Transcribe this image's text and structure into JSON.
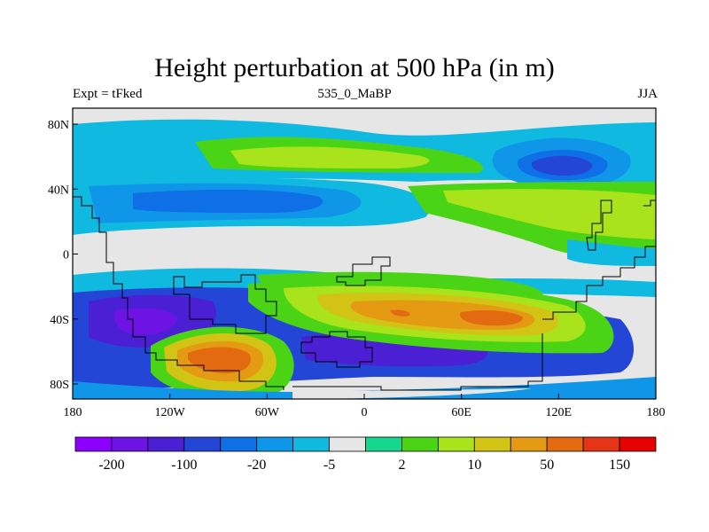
{
  "title": "Height perturbation at 500 hPa (in m)",
  "subtitle_left": "Expt = tFked",
  "subtitle_center": "535_0_MaBP",
  "subtitle_right": "JJA",
  "chart_data": {
    "type": "heatmap",
    "map": "global lat-lon contour fill",
    "x_ticks": [
      "180",
      "120W",
      "60W",
      "0",
      "60E",
      "120E",
      "180"
    ],
    "y_ticks": [
      "80N",
      "40N",
      "0",
      "40S",
      "80S"
    ],
    "colorbar": {
      "colors": [
        "#8c00ff",
        "#6d14e4",
        "#4b20d4",
        "#2346d6",
        "#0f6fe6",
        "#1096e8",
        "#10b9e0",
        "#e6e6e6",
        "#17d690",
        "#4bd416",
        "#a8e31c",
        "#d2c414",
        "#e59a14",
        "#e46a12",
        "#e43616",
        "#e60000"
      ],
      "labels": [
        "-200",
        "-100",
        "-20",
        "-5",
        "2",
        "10",
        "50",
        "150"
      ]
    },
    "regions": [
      {
        "feature": "negative anomaly band",
        "lat": "40S to 60S",
        "level": "-100"
      },
      {
        "feature": "positive anomaly center",
        "lat": "50S",
        "lon": "90W",
        "level": "150"
      },
      {
        "feature": "positive anomaly center",
        "lat": "30S",
        "lon": "60E to 100E",
        "level": "150"
      },
      {
        "feature": "negative anomaly",
        "lat": "35N",
        "lon": "150W to 40W",
        "level": "-20"
      },
      {
        "feature": "negative anomaly",
        "lat": "60N",
        "lon": "120E",
        "level": "-20"
      },
      {
        "feature": "positive anomaly band",
        "lat": "40N",
        "lon": "60E to 180",
        "level": "10"
      }
    ]
  }
}
